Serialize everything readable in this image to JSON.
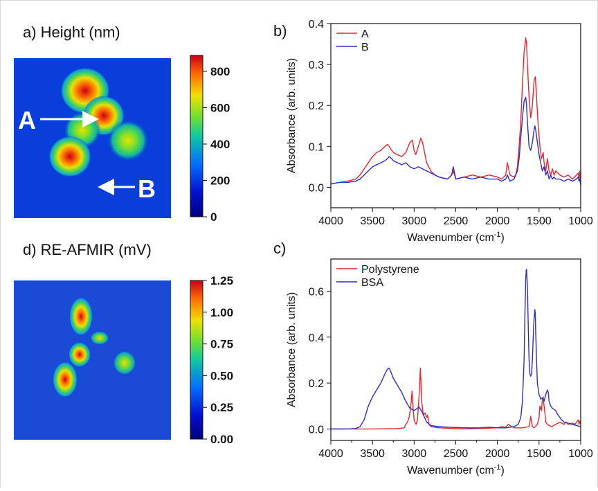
{
  "panels": {
    "a": {
      "label": "a) Height (nm)",
      "colorbar_ticks": [
        "0",
        "200",
        "400",
        "600",
        "800"
      ],
      "annotations": {
        "A": "A",
        "B": "B"
      }
    },
    "d": {
      "label": "d) RE-AFMIR (mV)",
      "colorbar_ticks": [
        "0.00",
        "0.25",
        "0.50",
        "0.75",
        "1.00",
        "1.25"
      ]
    },
    "b": {
      "label": "b)"
    },
    "c": {
      "label": "c)"
    }
  },
  "colors": {
    "red": "#e8242b",
    "blue": "#2b2bd6",
    "map_low": "#00009e",
    "map_high": "#c8001a"
  },
  "chart_data": [
    {
      "panel": "b",
      "type": "line",
      "xlabel": "Wavenumber (cm-1)",
      "ylabel": "Absorbance (arb. units)",
      "xlim": [
        4000,
        1000
      ],
      "ylim": [
        -0.05,
        0.4
      ],
      "x_ticks": [
        4000,
        3500,
        3000,
        2500,
        2000,
        1500,
        1000
      ],
      "y_ticks": [
        0.0,
        0.1,
        0.2,
        0.3,
        0.4
      ],
      "y_tick_labels": [
        "0.0",
        "0.1",
        "0.2",
        "0.3",
        "0.4"
      ],
      "legend": "top-left",
      "series": [
        {
          "name": "A",
          "color": "#e8242b",
          "x": [
            4000,
            3900,
            3800,
            3700,
            3650,
            3600,
            3550,
            3500,
            3450,
            3400,
            3350,
            3320,
            3300,
            3270,
            3250,
            3200,
            3150,
            3100,
            3050,
            3020,
            3000,
            2980,
            2950,
            2920,
            2900,
            2870,
            2850,
            2800,
            2750,
            2700,
            2600,
            2550,
            2530,
            2500,
            2400,
            2300,
            2200,
            2100,
            2000,
            1950,
            1900,
            1880,
            1850,
            1800,
            1780,
            1760,
            1740,
            1720,
            1700,
            1680,
            1660,
            1650,
            1640,
            1620,
            1600,
            1580,
            1560,
            1545,
            1530,
            1510,
            1490,
            1470,
            1450,
            1440,
            1420,
            1400,
            1380,
            1360,
            1340,
            1320,
            1300,
            1250,
            1200,
            1150,
            1100,
            1050,
            1030,
            1020,
            1010,
            1000
          ],
          "y": [
            0.008,
            0.012,
            0.015,
            0.02,
            0.03,
            0.045,
            0.06,
            0.075,
            0.085,
            0.09,
            0.1,
            0.105,
            0.1,
            0.09,
            0.085,
            0.08,
            0.075,
            0.085,
            0.11,
            0.115,
            0.09,
            0.08,
            0.1,
            0.12,
            0.11,
            0.08,
            0.06,
            0.04,
            0.03,
            0.025,
            0.02,
            0.03,
            0.04,
            0.02,
            0.025,
            0.03,
            0.025,
            0.03,
            0.025,
            0.02,
            0.03,
            0.06,
            0.03,
            0.025,
            0.03,
            0.05,
            0.1,
            0.16,
            0.25,
            0.33,
            0.365,
            0.35,
            0.3,
            0.22,
            0.17,
            0.2,
            0.26,
            0.27,
            0.22,
            0.15,
            0.1,
            0.07,
            0.085,
            0.06,
            0.04,
            0.07,
            0.04,
            0.03,
            0.045,
            0.03,
            0.04,
            0.03,
            0.025,
            0.03,
            0.02,
            0.03,
            0.035,
            0.02,
            0.04,
            0.01
          ]
        },
        {
          "name": "B",
          "color": "#2b2bd6",
          "x": [
            4000,
            3900,
            3800,
            3700,
            3650,
            3600,
            3550,
            3500,
            3450,
            3400,
            3350,
            3320,
            3300,
            3270,
            3250,
            3200,
            3150,
            3100,
            3050,
            3000,
            2950,
            2900,
            2850,
            2800,
            2750,
            2700,
            2600,
            2550,
            2530,
            2500,
            2400,
            2300,
            2200,
            2100,
            2000,
            1950,
            1900,
            1880,
            1850,
            1800,
            1760,
            1740,
            1720,
            1700,
            1680,
            1660,
            1650,
            1640,
            1620,
            1600,
            1580,
            1560,
            1550,
            1540,
            1520,
            1500,
            1480,
            1460,
            1440,
            1420,
            1400,
            1380,
            1360,
            1340,
            1320,
            1300,
            1250,
            1200,
            1150,
            1100,
            1050,
            1030,
            1020,
            1010,
            1000
          ],
          "y": [
            0.008,
            0.012,
            0.012,
            0.015,
            0.02,
            0.03,
            0.04,
            0.05,
            0.055,
            0.06,
            0.065,
            0.07,
            0.075,
            0.07,
            0.065,
            0.06,
            0.055,
            0.06,
            0.05,
            0.045,
            0.05,
            0.045,
            0.04,
            0.035,
            0.03,
            0.025,
            0.02,
            0.03,
            0.05,
            0.02,
            0.025,
            0.02,
            0.025,
            0.02,
            0.02,
            0.015,
            0.02,
            0.03,
            0.015,
            0.02,
            0.04,
            0.07,
            0.12,
            0.17,
            0.21,
            0.22,
            0.2,
            0.16,
            0.1,
            0.09,
            0.11,
            0.14,
            0.15,
            0.14,
            0.11,
            0.08,
            0.06,
            0.04,
            0.05,
            0.03,
            0.04,
            0.02,
            0.03,
            0.02,
            0.025,
            0.02,
            0.02,
            0.015,
            0.02,
            0.015,
            0.02,
            0.025,
            0.015,
            0.02,
            0.005
          ]
        }
      ]
    },
    {
      "panel": "c",
      "type": "line",
      "xlabel": "Wavenumber (cm-1)",
      "ylabel": "Absorbance (arb. units)",
      "xlim": [
        4000,
        1000
      ],
      "ylim": [
        -0.05,
        0.74
      ],
      "x_ticks": [
        4000,
        3500,
        3000,
        2500,
        2000,
        1500,
        1000
      ],
      "y_ticks": [
        0.0,
        0.2,
        0.4,
        0.6
      ],
      "y_tick_labels": [
        "0.0",
        "0.2",
        "0.4",
        "0.6"
      ],
      "legend": "top-left",
      "series": [
        {
          "name": "Polystyrene",
          "color": "#e8242b",
          "x": [
            4000,
            3500,
            3200,
            3120,
            3100,
            3080,
            3060,
            3040,
            3025,
            3010,
            3000,
            2990,
            2975,
            2960,
            2940,
            2925,
            2910,
            2890,
            2870,
            2850,
            2840,
            2820,
            2800,
            2700,
            2400,
            2000,
            1950,
            1900,
            1870,
            1800,
            1700,
            1620,
            1610,
            1600,
            1590,
            1580,
            1560,
            1520,
            1500,
            1490,
            1470,
            1460,
            1450,
            1440,
            1430,
            1420,
            1400,
            1380,
            1350,
            1300,
            1250,
            1200,
            1180,
            1150,
            1100,
            1070,
            1050,
            1030,
            1020,
            1010,
            1000
          ],
          "y": [
            0,
            0,
            0.002,
            0.005,
            0.02,
            0.03,
            0.05,
            0.1,
            0.165,
            0.08,
            0.04,
            0.03,
            0.02,
            0.04,
            0.15,
            0.265,
            0.12,
            0.06,
            0.07,
            0.05,
            0.06,
            0.02,
            0.01,
            0.005,
            0,
            0.005,
            0.01,
            0.008,
            0.02,
            0.005,
            0.005,
            0.01,
            0.03,
            0.055,
            0.03,
            0.01,
            0.005,
            0.02,
            0.05,
            0.1,
            0.08,
            0.13,
            0.14,
            0.1,
            0.07,
            0.03,
            0.02,
            0.015,
            0.01,
            0.02,
            0.03,
            0.02,
            0.03,
            0.02,
            0.025,
            0.02,
            0.03,
            0.04,
            0.02,
            0.035,
            0.02
          ]
        },
        {
          "name": "BSA",
          "color": "#2b2bd6",
          "x": [
            4000,
            3800,
            3700,
            3650,
            3600,
            3550,
            3500,
            3450,
            3400,
            3350,
            3320,
            3300,
            3280,
            3250,
            3200,
            3150,
            3100,
            3050,
            3000,
            2960,
            2940,
            2900,
            2850,
            2800,
            2700,
            2600,
            2400,
            2200,
            2100,
            2000,
            1900,
            1800,
            1750,
            1720,
            1700,
            1680,
            1670,
            1660,
            1655,
            1650,
            1640,
            1630,
            1620,
            1610,
            1600,
            1590,
            1580,
            1570,
            1560,
            1550,
            1545,
            1540,
            1530,
            1520,
            1500,
            1480,
            1460,
            1450,
            1440,
            1420,
            1400,
            1390,
            1380,
            1360,
            1340,
            1320,
            1300,
            1280,
            1250,
            1230,
            1200,
            1150,
            1100,
            1050,
            1020,
            1000
          ],
          "y": [
            0,
            0,
            0.002,
            0.01,
            0.04,
            0.1,
            0.14,
            0.17,
            0.2,
            0.24,
            0.26,
            0.265,
            0.25,
            0.22,
            0.19,
            0.16,
            0.12,
            0.09,
            0.08,
            0.09,
            0.095,
            0.07,
            0.03,
            0.015,
            0.01,
            0.008,
            0.005,
            0.005,
            0.008,
            0.005,
            0.005,
            0.01,
            0.02,
            0.05,
            0.12,
            0.3,
            0.5,
            0.65,
            0.69,
            0.695,
            0.62,
            0.45,
            0.3,
            0.24,
            0.23,
            0.24,
            0.3,
            0.4,
            0.48,
            0.52,
            0.5,
            0.42,
            0.3,
            0.2,
            0.15,
            0.13,
            0.135,
            0.13,
            0.12,
            0.15,
            0.17,
            0.16,
            0.12,
            0.1,
            0.09,
            0.085,
            0.08,
            0.065,
            0.05,
            0.04,
            0.03,
            0.025,
            0.02,
            0.015,
            0.012,
            0.01
          ]
        }
      ]
    }
  ]
}
